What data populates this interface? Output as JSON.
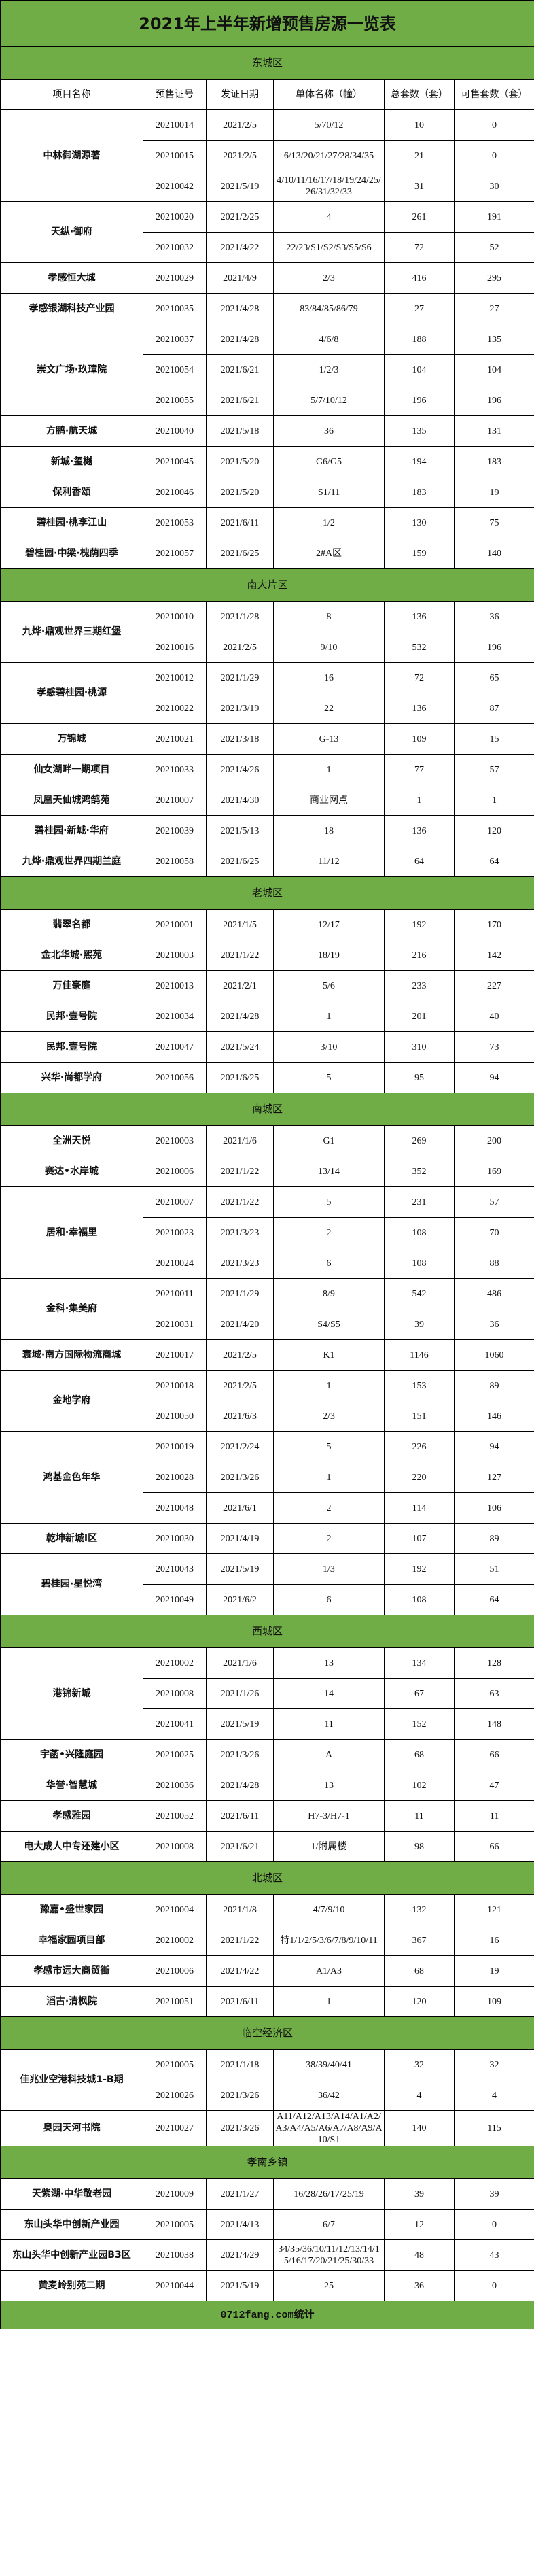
{
  "title": "2021年上半年新增预售房源一览表",
  "columns": [
    "项目名称",
    "预售证号",
    "发证日期",
    "单体名称（幢）",
    "总套数（套）",
    "可售套数（套）"
  ],
  "accent_color": "#70ad47",
  "districts": [
    {
      "name": "东城区",
      "projects": [
        {
          "name": "中林御湖源著",
          "permits": [
            [
              "20210014",
              "2021/2/5",
              "5/70/12",
              "10",
              "0"
            ],
            [
              "20210015",
              "2021/2/5",
              "6/13/20/21/27/28/34/35",
              "21",
              "0"
            ],
            [
              "20210042",
              "2021/5/19",
              "4/10/11/16/17/18/19/24/25/26/31/32/33",
              "31",
              "30"
            ]
          ]
        },
        {
          "name": "天纵·御府",
          "permits": [
            [
              "20210020",
              "2021/2/25",
              "4",
              "261",
              "191"
            ],
            [
              "20210032",
              "2021/4/22",
              "22/23/S1/S2/S3/S5/S6",
              "72",
              "52"
            ]
          ]
        },
        {
          "name": "孝感恒大城",
          "permits": [
            [
              "20210029",
              "2021/4/9",
              "2/3",
              "416",
              "295"
            ]
          ]
        },
        {
          "name": "孝感银湖科技产业园",
          "permits": [
            [
              "20210035",
              "2021/4/28",
              "83/84/85/86/79",
              "27",
              "27"
            ]
          ]
        },
        {
          "name": "崇文广场·玖璋院",
          "permits": [
            [
              "20210037",
              "2021/4/28",
              "4/6/8",
              "188",
              "135"
            ],
            [
              "20210054",
              "2021/6/21",
              "1/2/3",
              "104",
              "104"
            ],
            [
              "20210055",
              "2021/6/21",
              "5/7/10/12",
              "196",
              "196"
            ]
          ]
        },
        {
          "name": "方鹏·航天城",
          "permits": [
            [
              "20210040",
              "2021/5/18",
              "36",
              "135",
              "131"
            ]
          ]
        },
        {
          "name": "新城·玺樾",
          "permits": [
            [
              "20210045",
              "2021/5/20",
              "G6/G5",
              "194",
              "183"
            ]
          ]
        },
        {
          "name": "保利香颂",
          "permits": [
            [
              "20210046",
              "2021/5/20",
              "S1/11",
              "183",
              "19"
            ]
          ]
        },
        {
          "name": "碧桂园·桃李江山",
          "permits": [
            [
              "20210053",
              "2021/6/11",
              "1/2",
              "130",
              "75"
            ]
          ]
        },
        {
          "name": "碧桂园·中梁·槐荫四季",
          "permits": [
            [
              "20210057",
              "2021/6/25",
              "2#A区",
              "159",
              "140"
            ]
          ]
        }
      ]
    },
    {
      "name": "南大片区",
      "projects": [
        {
          "name": "九烨·鼎观世界三期红堡",
          "permits": [
            [
              "20210010",
              "2021/1/28",
              "8",
              "136",
              "36"
            ],
            [
              "20210016",
              "2021/2/5",
              "9/10",
              "532",
              "196"
            ]
          ]
        },
        {
          "name": "孝感碧桂园·桃源",
          "permits": [
            [
              "20210012",
              "2021/1/29",
              "16",
              "72",
              "65"
            ],
            [
              "20210022",
              "2021/3/19",
              "22",
              "136",
              "87"
            ]
          ]
        },
        {
          "name": "万锦城",
          "permits": [
            [
              "20210021",
              "2021/3/18",
              "G-13",
              "109",
              "15"
            ]
          ]
        },
        {
          "name": "仙女湖畔一期项目",
          "permits": [
            [
              "20210033",
              "2021/4/26",
              "1",
              "77",
              "57"
            ]
          ]
        },
        {
          "name": "凤凰天仙城鸿鹄苑",
          "permits": [
            [
              "20210007",
              "2021/4/30",
              "商业网点",
              "1",
              "1"
            ]
          ]
        },
        {
          "name": "碧桂园·新城·华府",
          "permits": [
            [
              "20210039",
              "2021/5/13",
              "18",
              "136",
              "120"
            ]
          ]
        },
        {
          "name": "九烨·鼎观世界四期兰庭",
          "permits": [
            [
              "20210058",
              "2021/6/25",
              "11/12",
              "64",
              "64"
            ]
          ]
        }
      ]
    },
    {
      "name": "老城区",
      "projects": [
        {
          "name": "翡翠名都",
          "permits": [
            [
              "20210001",
              "2021/1/5",
              "12/17",
              "192",
              "170"
            ]
          ]
        },
        {
          "name": "金北华城·熙苑",
          "permits": [
            [
              "20210003",
              "2021/1/22",
              "18/19",
              "216",
              "142"
            ]
          ]
        },
        {
          "name": "万佳豪庭",
          "permits": [
            [
              "20210013",
              "2021/2/1",
              "5/6",
              "233",
              "227"
            ]
          ]
        },
        {
          "name": "民邦·壹号院",
          "permits": [
            [
              "20210034",
              "2021/4/28",
              "1",
              "201",
              "40"
            ]
          ]
        },
        {
          "name": "民邦.壹号院",
          "permits": [
            [
              "20210047",
              "2021/5/24",
              "3/10",
              "310",
              "73"
            ]
          ]
        },
        {
          "name": "兴华·尚都学府",
          "permits": [
            [
              "20210056",
              "2021/6/25",
              "5",
              "95",
              "94"
            ]
          ]
        }
      ]
    },
    {
      "name": "南城区",
      "projects": [
        {
          "name": "全洲天悦",
          "permits": [
            [
              "20210003",
              "2021/1/6",
              "G1",
              "269",
              "200"
            ]
          ]
        },
        {
          "name": "赛达•水岸城",
          "permits": [
            [
              "20210006",
              "2021/1/22",
              "13/14",
              "352",
              "169"
            ]
          ]
        },
        {
          "name": "居和·幸福里",
          "permits": [
            [
              "20210007",
              "2021/1/22",
              "5",
              "231",
              "57"
            ],
            [
              "20210023",
              "2021/3/23",
              "2",
              "108",
              "70"
            ],
            [
              "20210024",
              "2021/3/23",
              "6",
              "108",
              "88"
            ]
          ]
        },
        {
          "name": "金科·集美府",
          "permits": [
            [
              "20210011",
              "2021/1/29",
              "8/9",
              "542",
              "486"
            ],
            [
              "20210031",
              "2021/4/20",
              "S4/S5",
              "39",
              "36"
            ]
          ]
        },
        {
          "name": "寰城·南方国际物流商城",
          "permits": [
            [
              "20210017",
              "2021/2/5",
              "K1",
              "1146",
              "1060"
            ]
          ]
        },
        {
          "name": "金地学府",
          "permits": [
            [
              "20210018",
              "2021/2/5",
              "1",
              "153",
              "89"
            ],
            [
              "20210050",
              "2021/6/3",
              "2/3",
              "151",
              "146"
            ]
          ]
        },
        {
          "name": "鸿基金色年华",
          "permits": [
            [
              "20210019",
              "2021/2/24",
              "5",
              "226",
              "94"
            ],
            [
              "20210028",
              "2021/3/26",
              "1",
              "220",
              "127"
            ],
            [
              "20210048",
              "2021/6/1",
              "2",
              "114",
              "106"
            ]
          ]
        },
        {
          "name": "乾坤新城I区",
          "permits": [
            [
              "20210030",
              "2021/4/19",
              "2",
              "107",
              "89"
            ]
          ]
        },
        {
          "name": "碧桂园·星悦湾",
          "permits": [
            [
              "20210043",
              "2021/5/19",
              "1/3",
              "192",
              "51"
            ],
            [
              "20210049",
              "2021/6/2",
              "6",
              "108",
              "64"
            ]
          ]
        }
      ]
    },
    {
      "name": "西城区",
      "projects": [
        {
          "name": "港锦新城",
          "permits": [
            [
              "20210002",
              "2021/1/6",
              "13",
              "134",
              "128"
            ],
            [
              "20210008",
              "2021/1/26",
              "14",
              "67",
              "63"
            ],
            [
              "20210041",
              "2021/5/19",
              "11",
              "152",
              "148"
            ]
          ]
        },
        {
          "name": "宇菡•兴隆庭园",
          "permits": [
            [
              "20210025",
              "2021/3/26",
              "A",
              "68",
              "66"
            ]
          ]
        },
        {
          "name": "华誉·智慧城",
          "permits": [
            [
              "20210036",
              "2021/4/28",
              "13",
              "102",
              "47"
            ]
          ]
        },
        {
          "name": "孝感雅园",
          "permits": [
            [
              "20210052",
              "2021/6/11",
              "H7-3/H7-1",
              "11",
              "11"
            ]
          ]
        },
        {
          "name": "电大成人中专还建小区",
          "permits": [
            [
              "20210008",
              "2021/6/21",
              "1/附属楼",
              "98",
              "66"
            ]
          ]
        }
      ]
    },
    {
      "name": "北城区",
      "projects": [
        {
          "name": "豫嘉•盛世家园",
          "permits": [
            [
              "20210004",
              "2021/1/8",
              "4/7/9/10",
              "132",
              "121"
            ]
          ]
        },
        {
          "name": "幸福家园项目部",
          "permits": [
            [
              "20210002",
              "2021/1/22",
              "特1/1/2/5/3/6/7/8/9/10/11",
              "367",
              "16"
            ]
          ]
        },
        {
          "name": "孝感市远大商贸街",
          "permits": [
            [
              "20210006",
              "2021/4/22",
              "A1/A3",
              "68",
              "19"
            ]
          ]
        },
        {
          "name": "滔古·清枫院",
          "permits": [
            [
              "20210051",
              "2021/6/11",
              "1",
              "120",
              "109"
            ]
          ]
        }
      ]
    },
    {
      "name": "临空经济区",
      "projects": [
        {
          "name": "佳兆业空港科技城1-B期",
          "permits": [
            [
              "20210005",
              "2021/1/18",
              "38/39/40/41",
              "32",
              "32"
            ],
            [
              "20210026",
              "2021/3/26",
              "36/42",
              "4",
              "4"
            ]
          ]
        },
        {
          "name": "奥园天河书院",
          "permits": [
            [
              "20210027",
              "2021/3/26",
              "A11/A12/A13/A14/A1/A2/A3/A4/A5/A6/A7/A8/A9/A10/S1",
              "140",
              "115"
            ]
          ]
        }
      ]
    },
    {
      "name": "孝南乡镇",
      "projects": [
        {
          "name": "天紫湖·中华敬老园",
          "permits": [
            [
              "20210009",
              "2021/1/27",
              "16/28/26/17/25/19",
              "39",
              "39"
            ]
          ]
        },
        {
          "name": "东山头华中创新产业园",
          "permits": [
            [
              "20210005",
              "2021/4/13",
              "6/7",
              "12",
              "0"
            ]
          ]
        },
        {
          "name": "东山头华中创新产业园B3区",
          "permits": [
            [
              "20210038",
              "2021/4/29",
              "34/35/36/10/11/12/13/14/15/16/17/20/21/25/30/33",
              "48",
              "43"
            ]
          ]
        },
        {
          "name": "黄麦岭别苑二期",
          "permits": [
            [
              "20210044",
              "2021/5/19",
              "25",
              "36",
              "0"
            ]
          ]
        }
      ]
    }
  ],
  "footer": "0712fang.com统计"
}
